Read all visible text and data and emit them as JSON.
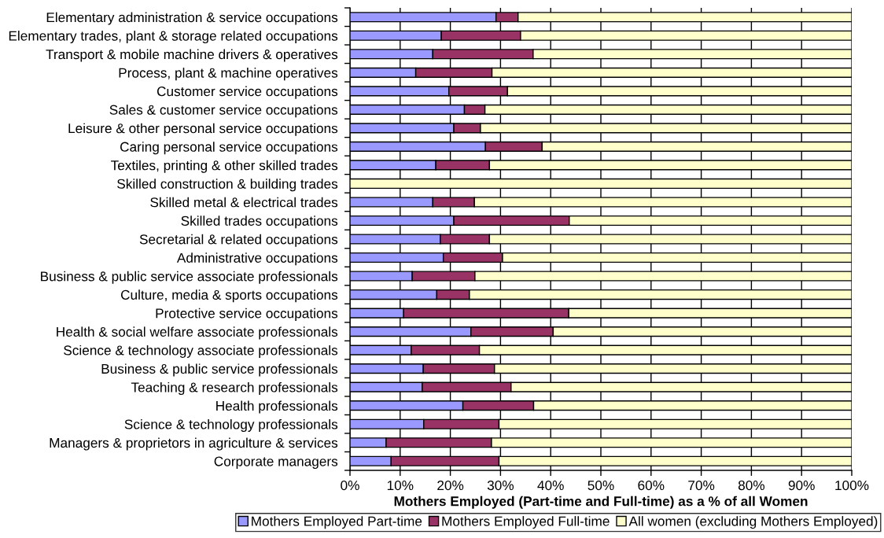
{
  "chart_data": {
    "type": "bar",
    "orientation": "horizontal",
    "stacked": true,
    "xlabel": "Mothers Employed (Part-time and Full-time) as a % of all Women",
    "categories": [
      "Elementary administration & service occupations",
      "Elementary trades, plant & storage related occupations",
      "Transport & mobile machine drivers & operatives",
      "Process, plant & machine operatives",
      "Customer service occupations",
      "Sales & customer service occupations",
      "Leisure & other personal service occupations",
      "Caring personal service occupations",
      "Textiles, printing & other skilled trades",
      "Skilled construction & building trades",
      "Skilled metal & electrical trades",
      "Skilled trades occupations",
      "Secretarial & related occupations",
      "Administrative occupations",
      "Business & public service associate professionals",
      "Culture, media & sports occupations",
      "Protective service occupations",
      "Health & social welfare associate professionals",
      "Science & technology associate professionals",
      "Business & public service professionals",
      "Teaching & research professionals",
      "Health professionals",
      "Science & technology professionals",
      "Managers & proprietors in agriculture & services",
      "Corporate managers"
    ],
    "series": [
      {
        "name": "Mothers Employed Part-time",
        "color": "#9999ff",
        "values": [
          29.1,
          18.2,
          16.5,
          13.1,
          19.7,
          22.8,
          20.7,
          27.0,
          17.1,
          0,
          16.5,
          20.7,
          18.0,
          18.6,
          12.4,
          17.3,
          10.7,
          24.1,
          12.2,
          14.6,
          14.4,
          22.5,
          14.7,
          7.2,
          8.2
        ]
      },
      {
        "name": "Mothers Employed Full-time",
        "color": "#993366",
        "values": [
          4.4,
          15.8,
          20.0,
          15.2,
          11.7,
          4.1,
          5.3,
          11.3,
          10.7,
          0,
          8.3,
          23.0,
          9.8,
          11.8,
          12.5,
          6.5,
          32.9,
          16.4,
          13.6,
          14.2,
          17.7,
          14.1,
          15.0,
          21.0,
          21.5
        ]
      },
      {
        "name": "All women (excluding Mothers Employed)",
        "color": "#ffffcc",
        "values": [
          66.5,
          66.0,
          63.5,
          71.7,
          68.6,
          73.1,
          74.0,
          61.7,
          72.2,
          100,
          75.2,
          56.3,
          72.2,
          69.6,
          75.1,
          76.2,
          56.4,
          59.5,
          74.2,
          71.2,
          67.9,
          63.4,
          70.3,
          71.8,
          70.3
        ]
      }
    ],
    "xlim": [
      0,
      100
    ],
    "xticks": [
      {
        "value": 0,
        "label": "0%"
      },
      {
        "value": 10,
        "label": "10%"
      },
      {
        "value": 20,
        "label": "20%"
      },
      {
        "value": 30,
        "label": "30%"
      },
      {
        "value": 40,
        "label": "40%"
      },
      {
        "value": 50,
        "label": "50%"
      },
      {
        "value": 60,
        "label": "60%"
      },
      {
        "value": 70,
        "label": "70%"
      },
      {
        "value": 80,
        "label": "80%"
      },
      {
        "value": 90,
        "label": "90%"
      },
      {
        "value": 100,
        "label": "100%"
      }
    ],
    "grid": "x",
    "legend": "bottom"
  }
}
